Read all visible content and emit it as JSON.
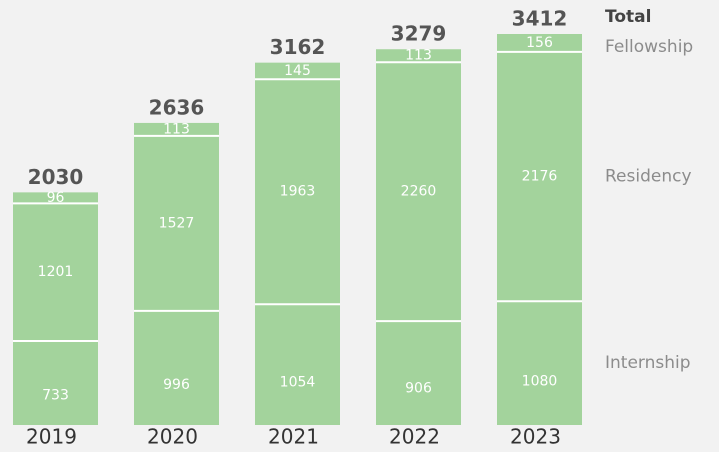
{
  "chart_data": {
    "type": "stacked-bar",
    "categories": [
      "2019",
      "2020",
      "2021",
      "2022",
      "2023"
    ],
    "series": [
      {
        "name": "Internship",
        "color": "#a3d39c",
        "values": [
          733,
          996,
          1054,
          906,
          1080
        ]
      },
      {
        "name": "Residency",
        "color": "#a3d39c",
        "values": [
          1201,
          1527,
          1963,
          2260,
          2176
        ]
      },
      {
        "name": "Fellowship",
        "color": "#a3d39c",
        "values": [
          96,
          113,
          145,
          113,
          156
        ]
      }
    ],
    "totals_label": "Total",
    "totals": [
      2030,
      2636,
      3162,
      3279,
      3412
    ]
  }
}
